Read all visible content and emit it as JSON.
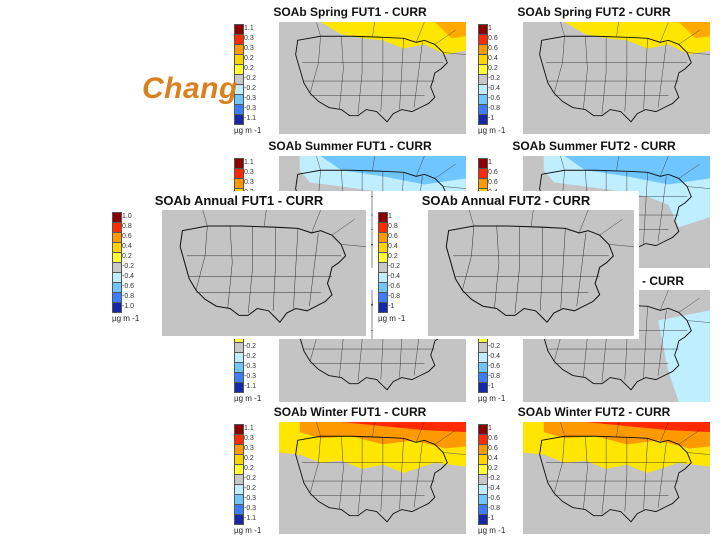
{
  "slide": {
    "title": "Chang"
  },
  "legend": {
    "unit": "µg m",
    "exponent": "-1",
    "season_labels": [
      "1.1",
      "0.3",
      "0.3",
      "0.2",
      "0.2",
      "-0.2",
      "-0.2",
      "-0.3",
      "-0.3",
      "-1.1"
    ],
    "fut2_labels": [
      "1",
      "0.6",
      "0.6",
      "0.4",
      "0.2",
      "-0.2",
      "-0.4",
      "-0.6",
      "-0.8",
      "-1"
    ],
    "annual_labels": [
      "1.0",
      "0.8",
      "0.6",
      "0.4",
      "0.2",
      "-0.2",
      "-0.4",
      "-0.6",
      "-0.8",
      "-1.0"
    ],
    "annual2_labels": [
      "1",
      "0.8",
      "0.6",
      "0.4",
      "0.2",
      "-0.2",
      "-0.4",
      "-0.6",
      "-0.8",
      "-1"
    ],
    "colors": [
      "#8b0000",
      "#ff2a00",
      "#ff9900",
      "#ffd400",
      "#ffff33",
      "#c8c8c8",
      "#bfefff",
      "#6fc6ff",
      "#3a7dff",
      "#1428a8"
    ]
  },
  "panels": [
    {
      "id": "spring-fut1",
      "title": "SOAb Spring FUT1 - CURR",
      "pattern": "north-yellow",
      "labels": "season_labels"
    },
    {
      "id": "spring-fut2",
      "title": "SOAb Spring FUT2 - CURR",
      "pattern": "north-yellow",
      "labels": "fut2_labels"
    },
    {
      "id": "summer-fut1",
      "title": "SOAb Summer FUT1 - CURR",
      "pattern": "light-blue",
      "labels": "season_labels"
    },
    {
      "id": "summer-fut2",
      "title": "SOAb Summer FUT2 - CURR",
      "pattern": "light-blue",
      "labels": "fut2_labels"
    },
    {
      "id": "fall-fut1",
      "title": "",
      "pattern": "gray",
      "labels": "season_labels"
    },
    {
      "id": "fall-fut2",
      "title": "",
      "pattern": "light-blue-east",
      "labels": "fut2_labels"
    },
    {
      "id": "winter-fut1",
      "title": "SOAb Winter FUT1 - CURR",
      "pattern": "winter",
      "labels": "season_labels"
    },
    {
      "id": "winter-fut2",
      "title": "SOAb Winter FUT2 - CURR",
      "pattern": "winter",
      "labels": "fut2_labels"
    },
    {
      "id": "annual-fut1",
      "title": "SOAb Annual FUT1 - CURR",
      "pattern": "gray",
      "labels": "annual_labels"
    },
    {
      "id": "annual-fut2",
      "title": "SOAb Annual FUT2 - CURR",
      "pattern": "gray",
      "labels": "annual2_labels"
    }
  ],
  "fall_cut_title": "- CURR"
}
